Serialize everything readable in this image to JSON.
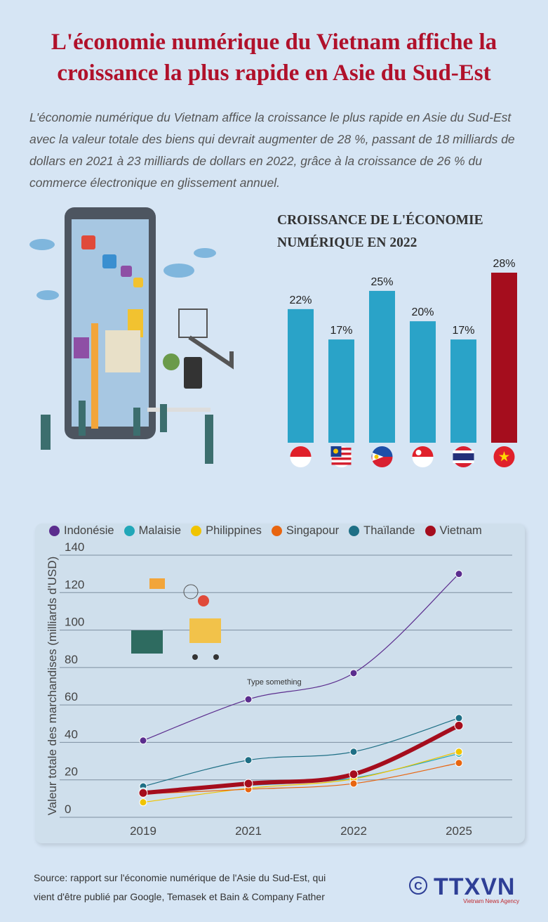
{
  "header": {
    "title": "L'économie numérique du Vietnam affiche la croissance la plus rapide en Asie du Sud-Est",
    "intro": "L'économie numérique du Vietnam affice la croissance le plus rapide en Asie du Sud-Est avec la valeur totale des biens qui devrait augmenter de 28 %, passant de 18 milliards de dollars en 2021 à 23 milliards de dollars en 2022, grâce à la croissance de 26 % du commerce électronique en glissement annuel."
  },
  "chart_data": [
    {
      "type": "bar",
      "title": "CROISSANCE DE L'ÉCONOMIE NUMÉRIQUE EN 2022",
      "categories": [
        "Indonésie",
        "Malaisie",
        "Philippines",
        "Singapour",
        "Thaïlande",
        "Vietnam"
      ],
      "category_flags": [
        "indonesia-flag",
        "malaysia-flag",
        "philippines-flag",
        "singapore-flag",
        "thailand-flag",
        "vietnam-flag"
      ],
      "values": [
        22,
        17,
        25,
        20,
        17,
        28
      ],
      "data_labels": [
        "22%",
        "17%",
        "25%",
        "20%",
        "17%",
        "28%"
      ],
      "colors": [
        "#2aa3c8",
        "#2aa3c8",
        "#2aa3c8",
        "#2aa3c8",
        "#2aa3c8",
        "#a50d1d"
      ],
      "ylim": [
        0,
        28
      ]
    },
    {
      "type": "line",
      "xlabel": "",
      "ylabel": "Valeur totale des marchandises (milliards d'USD)",
      "x": [
        "2019",
        "2021",
        "2022",
        "2025"
      ],
      "ylim": [
        0,
        140
      ],
      "yticks": [
        "0",
        "20",
        "40",
        "60",
        "80",
        "100",
        "120",
        "140"
      ],
      "grid": true,
      "legend": "top",
      "annotation": "Type something",
      "series": [
        {
          "name": "Indonésie",
          "color": "#5b2d8e",
          "values": [
            41,
            63,
            77,
            130
          ]
        },
        {
          "name": "Malaisie",
          "color": "#22a7b8",
          "values": [
            14,
            17,
            21,
            34
          ]
        },
        {
          "name": "Philippines",
          "color": "#f0c400",
          "values": [
            8,
            15.5,
            20.5,
            35
          ]
        },
        {
          "name": "Singapour",
          "color": "#e8650f",
          "values": [
            12.5,
            15,
            18,
            29
          ]
        },
        {
          "name": "Thaïlande",
          "color": "#1e6f85",
          "values": [
            16.5,
            30.5,
            35,
            53
          ]
        },
        {
          "name": "Vietnam",
          "color": "#a50d1d",
          "values": [
            13,
            18,
            23,
            49
          ]
        }
      ]
    }
  ],
  "footer": {
    "source_line1": "Source: rapport sur l'économie numérique de l'Asie du Sud-Est, qui",
    "source_line2": "vient d'être publié par Google, Temasek et Bain & Company Father",
    "logo_text": "TTXVN",
    "logo_sub": "Vietnam News Agency",
    "copyright": "©"
  }
}
